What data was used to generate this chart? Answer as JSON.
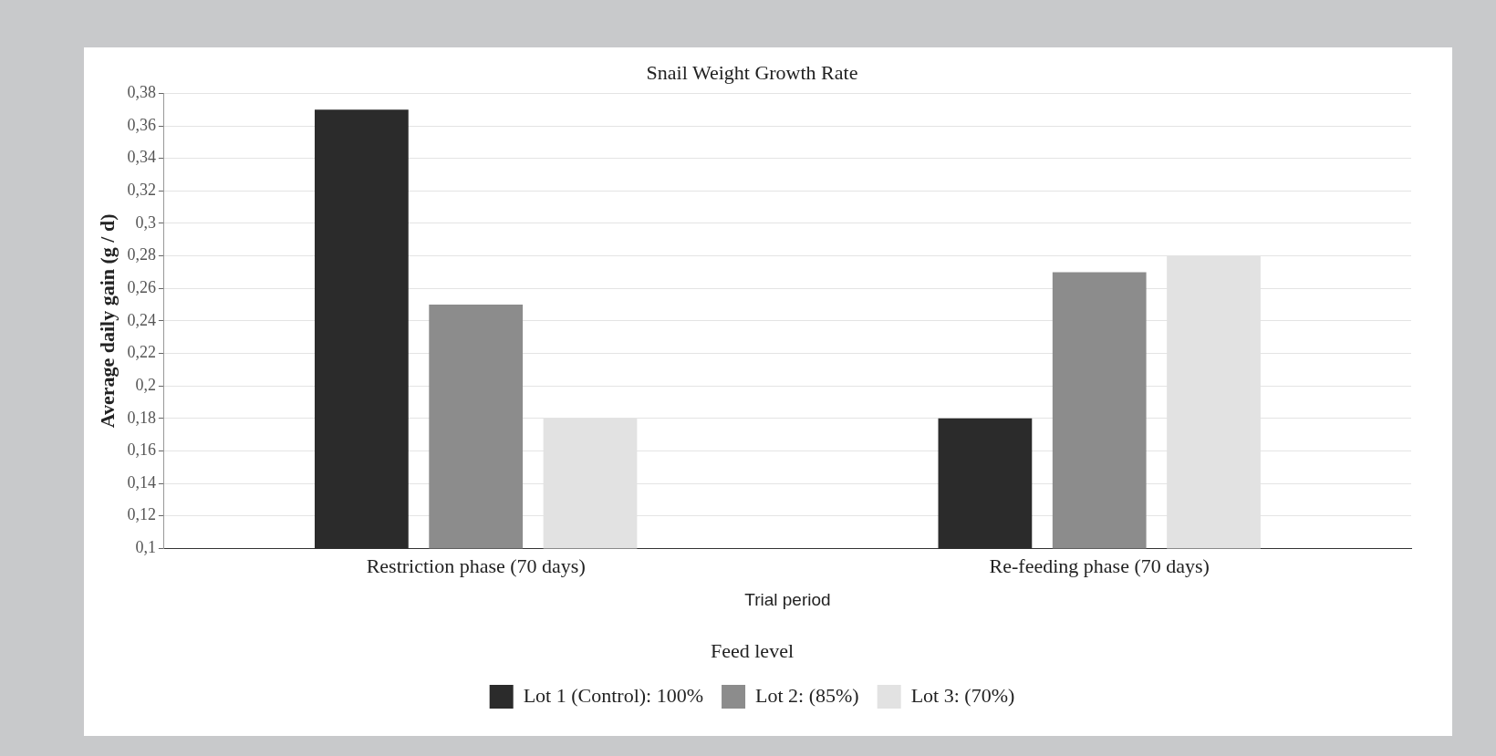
{
  "chart_data": {
    "type": "bar",
    "title": "Snail Weight Growth Rate",
    "xlabel": "Trial period",
    "ylabel": "Average daily gain (g / d)",
    "legend_title": "Feed level",
    "categories": [
      "Restriction phase (70 days)",
      "Re-feeding phase (70 days)"
    ],
    "series": [
      {
        "name": "Lot 1 (Control): 100%",
        "color": "#2b2b2b",
        "values": [
          0.37,
          0.18
        ]
      },
      {
        "name": "Lot 2: (85%)",
        "color": "#8c8c8c",
        "values": [
          0.25,
          0.27
        ]
      },
      {
        "name": "Lot 3: (70%)",
        "color": "#e2e2e2",
        "values": [
          0.18,
          0.28
        ]
      }
    ],
    "ylim": [
      0.1,
      0.38
    ],
    "yticks": [
      {
        "value": 0.1,
        "label": "0,1"
      },
      {
        "value": 0.12,
        "label": "0,12"
      },
      {
        "value": 0.14,
        "label": "0,14"
      },
      {
        "value": 0.16,
        "label": "0,16"
      },
      {
        "value": 0.18,
        "label": "0,18"
      },
      {
        "value": 0.2,
        "label": "0,2"
      },
      {
        "value": 0.22,
        "label": "0,22"
      },
      {
        "value": 0.24,
        "label": "0,24"
      },
      {
        "value": 0.26,
        "label": "0,26"
      },
      {
        "value": 0.28,
        "label": "0,28"
      },
      {
        "value": 0.3,
        "label": "0,3"
      },
      {
        "value": 0.32,
        "label": "0,32"
      },
      {
        "value": 0.34,
        "label": "0,34"
      },
      {
        "value": 0.36,
        "label": "0,36"
      },
      {
        "value": 0.38,
        "label": "0,38"
      }
    ],
    "grid": "y",
    "legend": "bottom"
  }
}
